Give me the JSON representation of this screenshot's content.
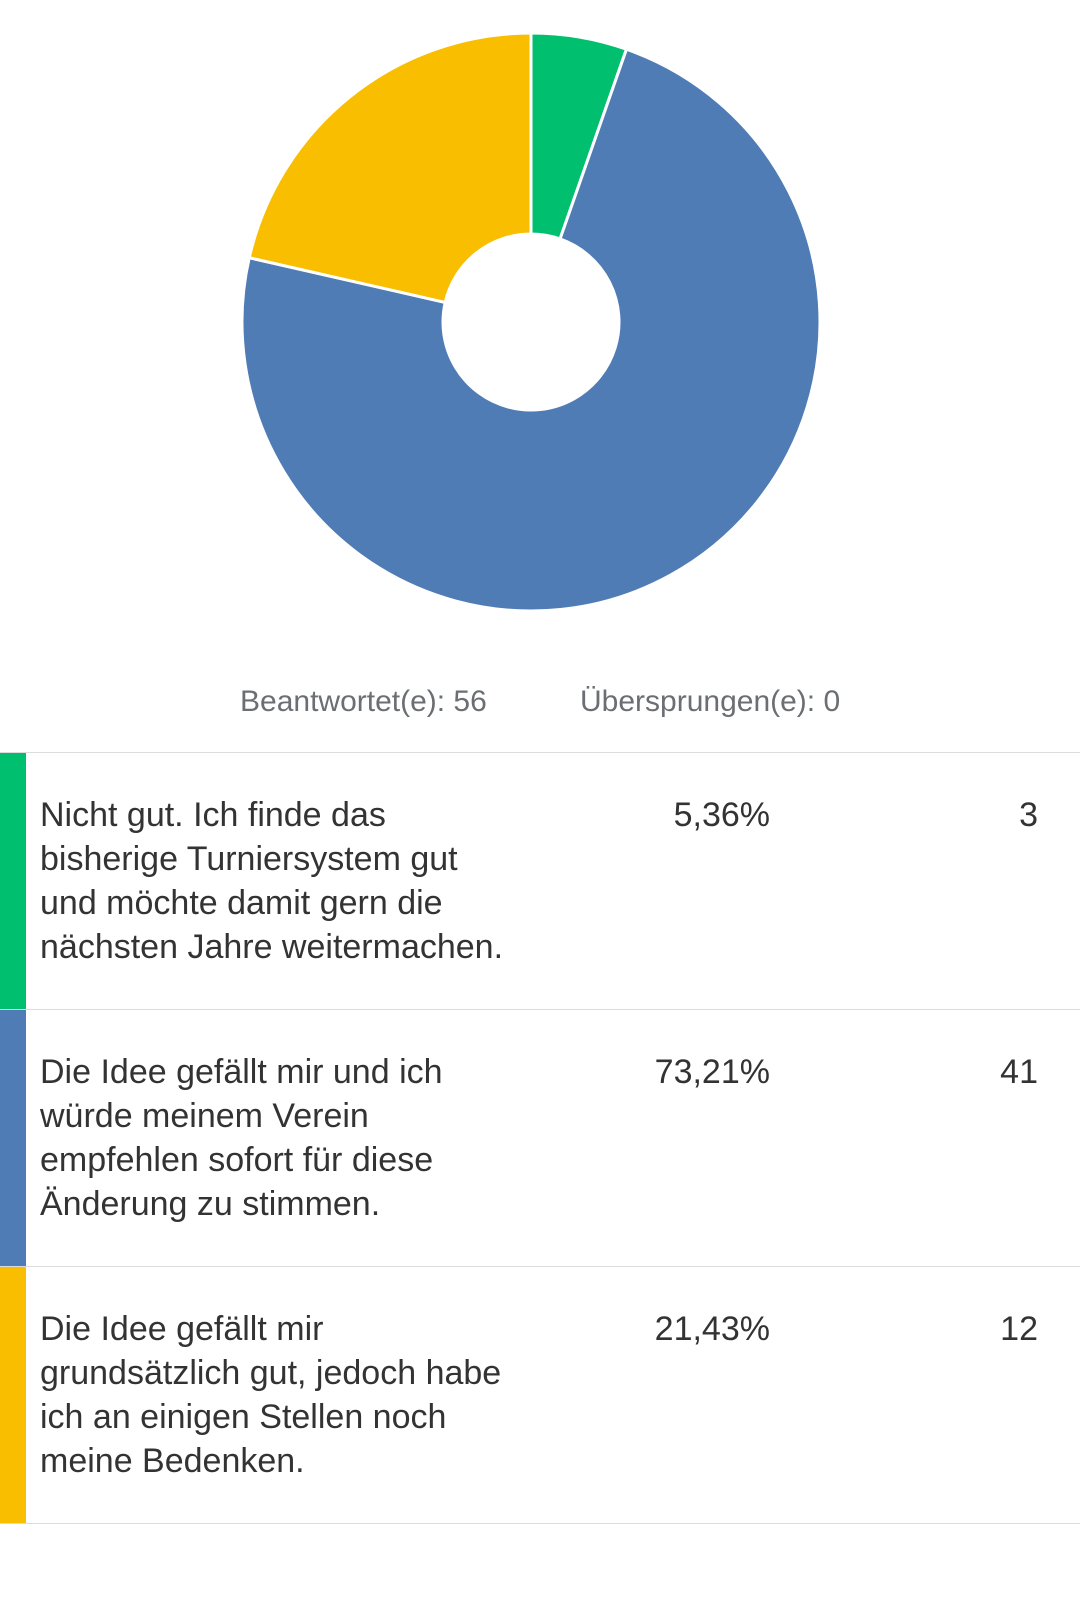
{
  "stats": {
    "answered": "Beantwortet(e): 56",
    "skipped": "Übersprungen(e): 0"
  },
  "chart_data": {
    "type": "pie",
    "donut": true,
    "categories": [
      "Nicht gut. Ich finde das bisherige Turniersystem gut und möchte damit gern die nächsten Jahre weitermachen.",
      "Die Idee gefällt mir und ich würde meinem Verein empfehlen sofort für diese Änderung zu stimmen.",
      "Die Idee gefällt mir grundsätzlich gut, jedoch habe ich an einigen Stellen noch meine Bedenken."
    ],
    "values": [
      3,
      41,
      12
    ],
    "percent_labels": [
      "5,36%",
      "73,21%",
      "21,43%"
    ],
    "count_labels": [
      "3",
      "41",
      "12"
    ],
    "colors": [
      "#00bf6f",
      "#507cb6",
      "#f9be00"
    ]
  }
}
